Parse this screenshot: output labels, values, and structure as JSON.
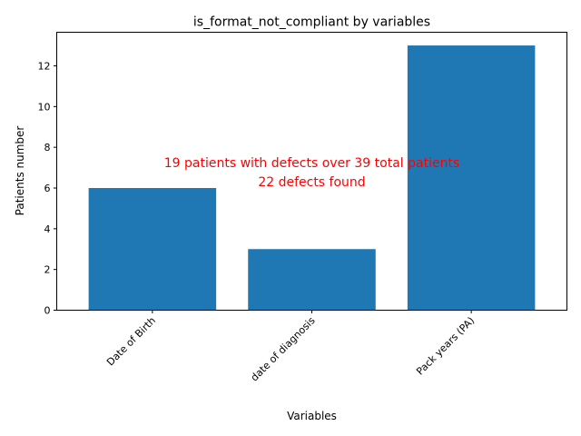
{
  "chart_data": {
    "type": "bar",
    "title": "is_format_not_compliant by variables",
    "xlabel": "Variables",
    "ylabel": "Patients number",
    "categories": [
      "Date of Birth",
      "date of diagnosis",
      "Pack years (PA)"
    ],
    "values": [
      6,
      3,
      13
    ],
    "ylim": [
      0,
      13.65
    ],
    "yticks": [
      0,
      2,
      4,
      6,
      8,
      10,
      12
    ],
    "grid": false,
    "bar_color": "#1f77b4",
    "annotation": {
      "lines": [
        "19 patients with defects over 39 total patients",
        "22 defects found"
      ],
      "color": "#ff0000"
    }
  }
}
